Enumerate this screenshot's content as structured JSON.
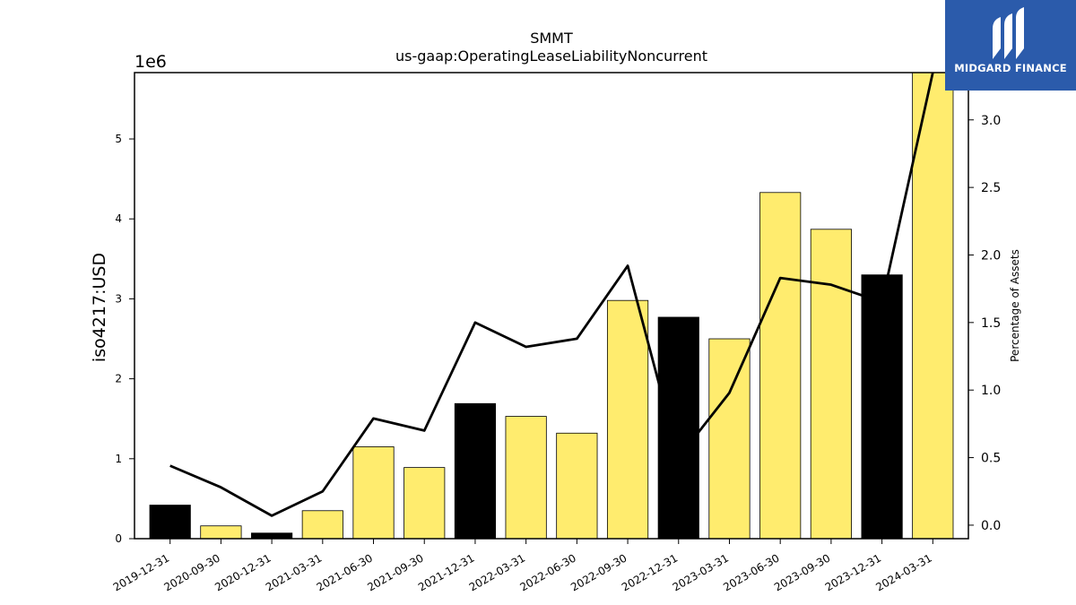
{
  "chart_data": {
    "type": "bar",
    "title": "SMMT",
    "subtitle": "us-gaap:OperatingLeaseLiabilityNoncurrent",
    "ylabel": "iso4217:USD",
    "y_offset_label": "1e6",
    "y2label": "Percentage of Assets",
    "categories": [
      "2019-12-31",
      "2020-09-30",
      "2020-12-31",
      "2021-03-31",
      "2021-06-30",
      "2021-09-30",
      "2021-12-31",
      "2022-03-31",
      "2022-06-30",
      "2022-09-30",
      "2022-12-31",
      "2023-03-31",
      "2023-06-30",
      "2023-09-30",
      "2023-12-31",
      "2024-03-31"
    ],
    "values": [
      420000,
      160000,
      70000,
      350000,
      1150000,
      890000,
      1690000,
      1530000,
      1320000,
      2980000,
      2770000,
      2500000,
      4330000,
      3870000,
      3300000,
      5830000
    ],
    "bar_colors": [
      "#000000",
      "#ffec6e",
      "#000000",
      "#ffec6e",
      "#ffec6e",
      "#ffec6e",
      "#000000",
      "#ffec6e",
      "#ffec6e",
      "#ffec6e",
      "#000000",
      "#ffec6e",
      "#ffec6e",
      "#ffec6e",
      "#000000",
      "#ffec6e"
    ],
    "percent_of_assets": [
      0.44,
      0.28,
      0.07,
      0.25,
      0.79,
      0.7,
      1.5,
      1.32,
      1.38,
      1.92,
      0.5,
      0.98,
      1.83,
      1.78,
      1.65,
      3.35
    ],
    "ylim": [
      0,
      5830000
    ],
    "y_ticks": [
      0,
      1,
      2,
      3,
      4,
      5
    ],
    "y_tick_labels": [
      "0",
      "1",
      "2",
      "3",
      "4",
      "5"
    ],
    "y2lim": [
      -0.1,
      3.35
    ],
    "y2_ticks": [
      0.0,
      0.5,
      1.0,
      1.5,
      2.0,
      2.5,
      3.0
    ],
    "y2_tick_labels": [
      "0.0",
      "0.5",
      "1.0",
      "1.5",
      "2.0",
      "2.5",
      "3.0"
    ],
    "grid": false,
    "legend": "none"
  },
  "logo": {
    "text": "MIDGARD FINANCE"
  }
}
